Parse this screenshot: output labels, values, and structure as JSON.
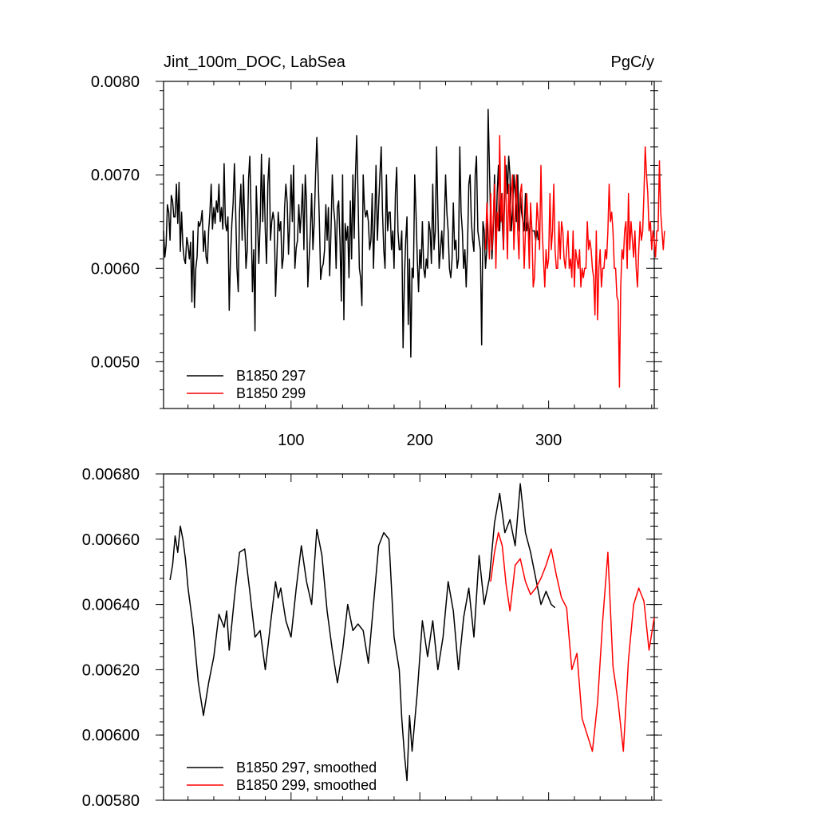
{
  "chart_data": [
    {
      "type": "line",
      "title": "Jint_100m_DOC, LabSea",
      "units": "PgC/y",
      "xlabel": "",
      "ylabel": "",
      "xlim": [
        1,
        382
      ],
      "ylim": [
        0.0045,
        0.008
      ],
      "xticks": [
        100,
        200,
        300
      ],
      "yticks": [
        0.005,
        0.006,
        0.007,
        0.008
      ],
      "ytick_labels": [
        "0.0050",
        "0.0060",
        "0.0070",
        "0.0080"
      ],
      "legend_position": "bottom-left",
      "grid": false,
      "series": [
        {
          "name": "B1850 297",
          "color": "#000000",
          "x_start": 1,
          "x_step": 1,
          "values": [
            0.0064,
            0.00612,
            0.00625,
            0.00668,
            0.0066,
            0.0063,
            0.00678,
            0.00672,
            0.00655,
            0.00655,
            0.0069,
            0.00648,
            0.00692,
            0.00618,
            0.0066,
            0.00625,
            0.0061,
            0.00605,
            0.00633,
            0.00625,
            0.0061,
            0.00628,
            0.00564,
            0.0064,
            0.00558,
            0.006,
            0.00612,
            0.0065,
            0.00645,
            0.0065,
            0.00662,
            0.00618,
            0.0064,
            0.00612,
            0.00605,
            0.0064,
            0.0066,
            0.0069,
            0.00642,
            0.00665,
            0.00648,
            0.00672,
            0.0066,
            0.0069,
            0.0065,
            0.00665,
            0.00642,
            0.00712,
            0.00648,
            0.0064,
            0.00655,
            0.00555,
            0.00612,
            0.00648,
            0.0067,
            0.00712,
            0.0066,
            0.006,
            0.00575,
            0.0066,
            0.0069,
            0.0063,
            0.007,
            0.00648,
            0.006,
            0.0062,
            0.00695,
            0.0072,
            0.00655,
            0.00575,
            0.0062,
            0.00533,
            0.00688,
            0.0065,
            0.00605,
            0.0065,
            0.00722,
            0.0065,
            0.007,
            0.0064,
            0.00605,
            0.0069,
            0.00718,
            0.0063,
            0.0065,
            0.0066,
            0.0065,
            0.0057,
            0.0061,
            0.0066,
            0.0064,
            0.0065,
            0.006,
            0.00612,
            0.00665,
            0.0069,
            0.0067,
            0.00615,
            0.0065,
            0.007,
            0.0065,
            0.0071,
            0.006,
            0.00622,
            0.0063,
            0.00668,
            0.00638,
            0.0066,
            0.0069,
            0.0062,
            0.007,
            0.0067,
            0.0058,
            0.0061,
            0.0064,
            0.0068,
            0.0062,
            0.0065,
            0.007,
            0.0074,
            0.007,
            0.0065,
            0.00588,
            0.006,
            0.00605,
            0.0062,
            0.00668,
            0.0063,
            0.00665,
            0.00592,
            0.00638,
            0.007,
            0.00665,
            0.0065,
            0.006,
            0.00665,
            0.00672,
            0.0063,
            0.00565,
            0.007,
            0.00545,
            0.00648,
            0.0063,
            0.00645,
            0.0059,
            0.00672,
            0.0061,
            0.007,
            0.00632,
            0.007,
            0.00742,
            0.0068,
            0.006,
            0.0059,
            0.0056,
            0.007,
            0.00665,
            0.00655,
            0.00662,
            0.0065,
            0.0062,
            0.0063,
            0.0068,
            0.006,
            0.0065,
            0.0071,
            0.0063,
            0.00668,
            0.007,
            0.0073,
            0.0066,
            0.0062,
            0.006,
            0.007,
            0.0064,
            0.0066,
            0.0066,
            0.0062,
            0.0064,
            0.006,
            0.0068,
            0.00708,
            0.0064,
            0.0062,
            0.0062,
            0.0064,
            0.00515,
            0.0059,
            0.0063,
            0.00655,
            0.0054,
            0.0061,
            0.00505,
            0.006,
            0.0059,
            0.007,
            0.0066,
            0.0061,
            0.00575,
            0.0062,
            0.006,
            0.0065,
            0.006,
            0.0059,
            0.0061,
            0.006,
            0.0065,
            0.0064,
            0.00605,
            0.0069,
            0.0062,
            0.0064,
            0.0073,
            0.0066,
            0.006,
            0.0062,
            0.0064,
            0.0061,
            0.0065,
            0.007,
            0.0066,
            0.0064,
            0.006,
            0.0059,
            0.0061,
            0.0067,
            0.0062,
            0.0063,
            0.006,
            0.0061,
            0.0073,
            0.0066,
            0.0064,
            0.006,
            0.0062,
            0.0058,
            0.0062,
            0.0069,
            0.007,
            0.0065,
            0.0063,
            0.00618,
            0.007,
            0.0072,
            0.0064,
            0.0063,
            0.0062,
            0.00518,
            0.0065,
            0.0064,
            0.006,
            0.0062,
            0.0077,
            0.0071,
            0.0065,
            0.0061,
            0.0064,
            0.007,
            0.0062,
            0.0068,
            0.0071,
            0.0064,
            0.0068,
            0.0065,
            0.0062,
            0.0069,
            0.0071,
            0.0068,
            0.0072,
            0.007,
            0.0064,
            0.0066,
            0.007,
            0.0068,
            0.0065,
            0.007,
            0.0064,
            0.0068,
            0.0066,
            0.0065,
            0.0064,
            0.0068,
            0.0064,
            0.0065,
            0.0063,
            0.0066,
            0.0064,
            0.0064,
            0.0064,
            0.0063,
            0.0064,
            0.0063
          ]
        },
        {
          "name": "B1850 299",
          "color": "#ff0000",
          "x_start": 251,
          "x_step": 1,
          "values": [
            0.0062,
            0.0067,
            0.0064,
            0.0061,
            0.0068,
            0.0062,
            0.0065,
            0.0069,
            0.006,
            0.0066,
            0.0064,
            0.00742,
            0.0065,
            0.0068,
            0.0062,
            0.0072,
            0.0067,
            0.0061,
            0.0069,
            0.0064,
            0.0068,
            0.007,
            0.0062,
            0.0066,
            0.007,
            0.0064,
            0.0061,
            0.0068,
            0.0069,
            0.0065,
            0.006,
            0.0064,
            0.0068,
            0.0065,
            0.006,
            0.0067,
            0.0064,
            0.0058,
            0.0059,
            0.0063,
            0.0067,
            0.0065,
            0.0062,
            0.0071,
            0.0064,
            0.0061,
            0.0058,
            0.0062,
            0.006,
            0.0061,
            0.0068,
            0.0062,
            0.0064,
            0.0069,
            0.0062,
            0.006,
            0.006,
            0.0065,
            0.0061,
            0.0065,
            0.0064,
            0.0061,
            0.006,
            0.0062,
            0.0064,
            0.006,
            0.0061,
            0.0059,
            0.0064,
            0.0058,
            0.0062,
            0.0061,
            0.006,
            0.0062,
            0.0058,
            0.006,
            0.0059,
            0.006,
            0.006,
            0.0065,
            0.0062,
            0.0063,
            0.0062,
            0.006,
            0.0059,
            0.0055,
            0.0064,
            0.00545,
            0.006,
            0.0062,
            0.0058,
            0.006,
            0.006,
            0.0062,
            0.0061,
            0.0064,
            0.0069,
            0.0065,
            0.0066,
            0.0064,
            0.006,
            0.006,
            0.0057,
            0.00565,
            0.00473,
            0.0058,
            0.0062,
            0.0061,
            0.0064,
            0.0065,
            0.006,
            0.0068,
            0.0062,
            0.0065,
            0.0063,
            0.00612,
            0.0064,
            0.006,
            0.0058,
            0.0062,
            0.0065,
            0.0063,
            0.0064,
            0.0068,
            0.0073,
            0.007,
            0.0068,
            0.0064,
            0.0065,
            0.0062,
            0.0064,
            0.0063,
            0.00612,
            0.0064,
            0.0064,
            0.00715,
            0.0066,
            0.0064,
            0.0062,
            0.0064
          ]
        }
      ]
    },
    {
      "type": "line",
      "title": "",
      "xlabel": "",
      "ylabel": "",
      "xlim": [
        1,
        382
      ],
      "ylim": [
        0.0058,
        0.0068
      ],
      "xticks": [
        100,
        200,
        300
      ],
      "yticks": [
        0.0058,
        0.006,
        0.0062,
        0.0064,
        0.0066,
        0.0068
      ],
      "ytick_labels": [
        "0.00580",
        "0.00600",
        "0.00620",
        "0.00640",
        "0.00660",
        "0.00680"
      ],
      "legend_position": "bottom-left",
      "grid": false,
      "series": [
        {
          "name": "B1850 297, smoothed",
          "color": "#000000",
          "x": [
            6,
            8,
            10,
            12,
            14,
            16,
            18,
            20,
            24,
            28,
            32,
            36,
            40,
            44,
            48,
            50,
            52,
            56,
            60,
            64,
            68,
            72,
            76,
            80,
            84,
            88,
            90,
            92,
            96,
            100,
            104,
            108,
            112,
            116,
            120,
            124,
            128,
            132,
            136,
            140,
            144,
            148,
            152,
            156,
            160,
            164,
            168,
            172,
            176,
            180,
            184,
            186,
            188,
            190,
            192,
            194,
            198,
            202,
            206,
            210,
            214,
            218,
            222,
            226,
            230,
            234,
            238,
            242,
            246,
            250,
            254,
            258,
            262,
            266,
            270,
            274,
            278,
            282,
            286,
            290,
            294,
            298,
            302,
            305
          ],
          "y": [
            0.006475,
            0.00652,
            0.00661,
            0.00656,
            0.00664,
            0.0066,
            0.00654,
            0.00645,
            0.00633,
            0.00616,
            0.00606,
            0.00616,
            0.00624,
            0.00637,
            0.00633,
            0.00638,
            0.00626,
            0.00642,
            0.00656,
            0.00657,
            0.00644,
            0.0063,
            0.00632,
            0.0062,
            0.00634,
            0.00647,
            0.00642,
            0.00645,
            0.00635,
            0.0063,
            0.00645,
            0.00658,
            0.00647,
            0.0064,
            0.00663,
            0.00655,
            0.00638,
            0.00626,
            0.00616,
            0.00626,
            0.0064,
            0.00632,
            0.00634,
            0.00632,
            0.00622,
            0.0064,
            0.00658,
            0.00662,
            0.0066,
            0.0063,
            0.0062,
            0.00605,
            0.00594,
            0.00586,
            0.00606,
            0.00595,
            0.00613,
            0.00635,
            0.00624,
            0.00635,
            0.0062,
            0.0063,
            0.00647,
            0.00638,
            0.0062,
            0.00636,
            0.00645,
            0.0063,
            0.00655,
            0.0064,
            0.00648,
            0.00665,
            0.00674,
            0.00662,
            0.00666,
            0.00658,
            0.00677,
            0.00662,
            0.00656,
            0.00648,
            0.0064,
            0.00644,
            0.0064,
            0.00639
          ]
        },
        {
          "name": "B1850 299, smoothed",
          "color": "#ff0000",
          "x": [
            255,
            258,
            261,
            264,
            267,
            270,
            274,
            278,
            282,
            286,
            290,
            294,
            298,
            302,
            306,
            310,
            314,
            318,
            322,
            326,
            330,
            334,
            338,
            342,
            346,
            350,
            354,
            358,
            362,
            366,
            370,
            374,
            378,
            382
          ],
          "y": [
            0.00647,
            0.00656,
            0.00662,
            0.00658,
            0.00646,
            0.00638,
            0.00652,
            0.00654,
            0.00647,
            0.00643,
            0.00645,
            0.00648,
            0.00652,
            0.00657,
            0.00649,
            0.00642,
            0.00639,
            0.0062,
            0.00625,
            0.00605,
            0.006,
            0.00595,
            0.0061,
            0.00635,
            0.00656,
            0.00621,
            0.0061,
            0.00595,
            0.00623,
            0.0064,
            0.00645,
            0.00641,
            0.00626,
            0.00636
          ]
        }
      ]
    }
  ]
}
